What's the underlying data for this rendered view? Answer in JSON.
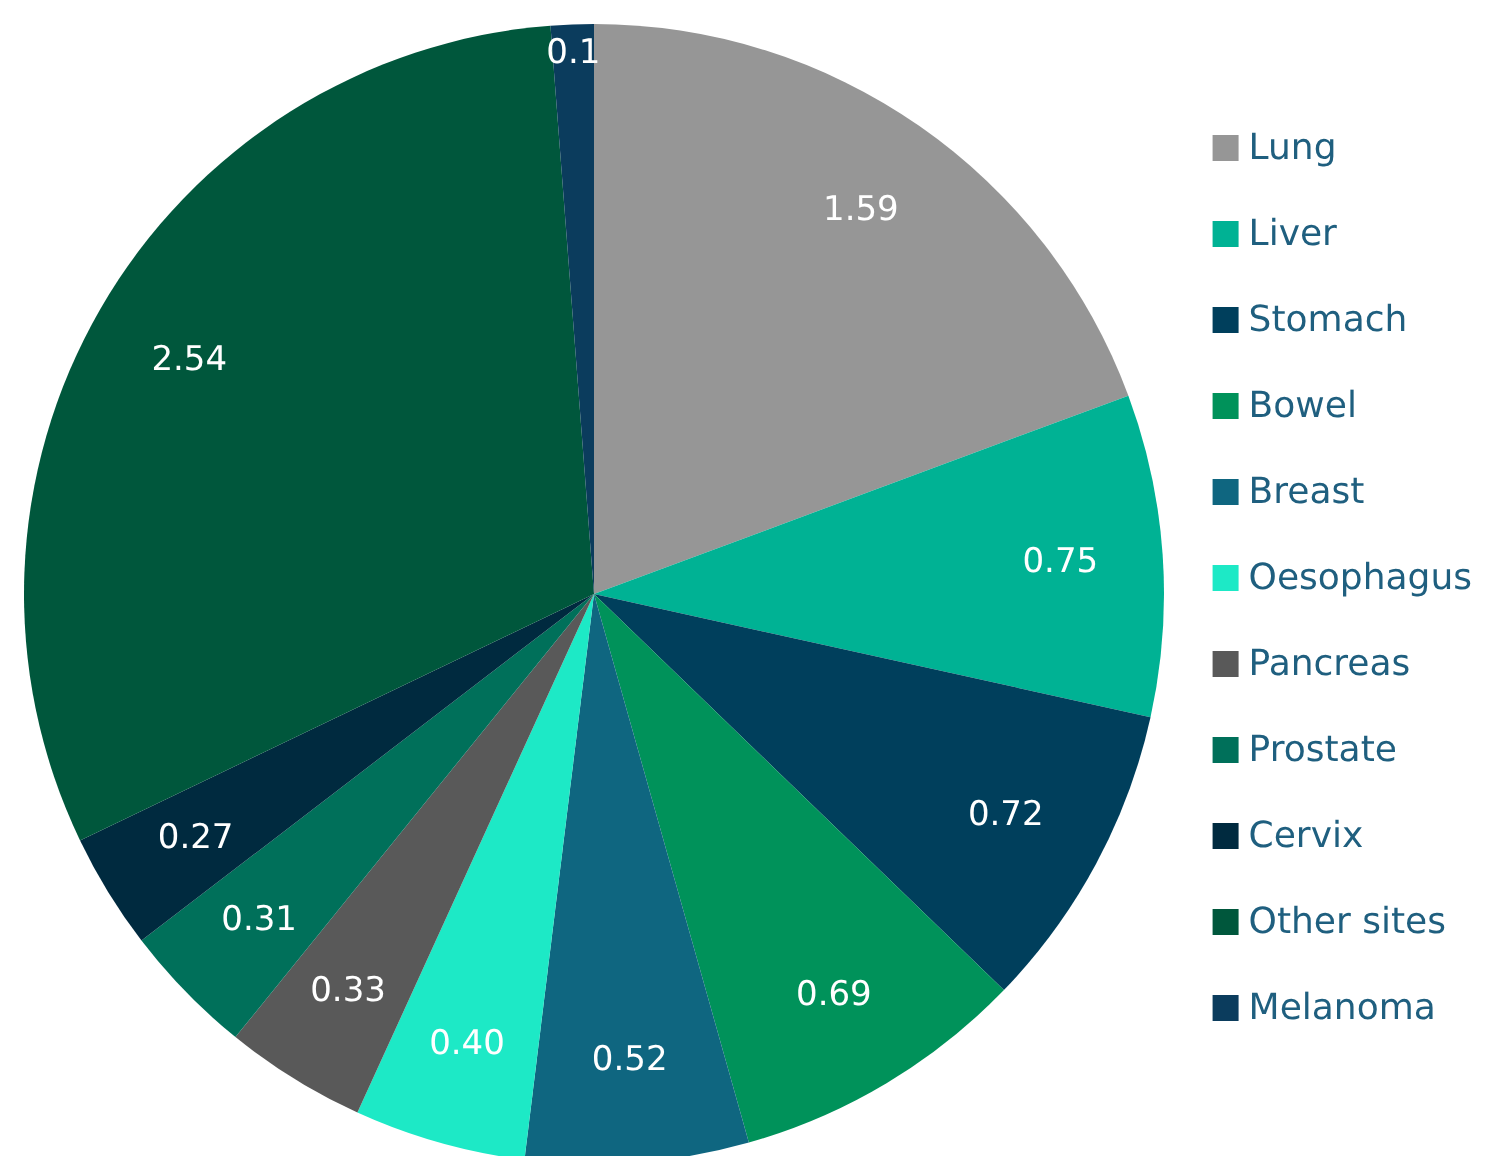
{
  "chart_data": {
    "type": "pie",
    "categories": [
      "Lung",
      "Liver",
      "Stomach",
      "Bowel",
      "Breast",
      "Oesophagus",
      "Pancreas",
      "Prostate",
      "Cervix",
      "Other sites",
      "Melanoma"
    ],
    "values": [
      1.59,
      0.75,
      0.72,
      0.69,
      0.52,
      0.4,
      0.33,
      0.31,
      0.27,
      2.54,
      0.1
    ],
    "value_labels": [
      "1.59",
      "0.75",
      "0.72",
      "0.69",
      "0.52",
      "0.40",
      "0.33",
      "0.31",
      "0.27",
      "2.54",
      "0.1"
    ],
    "colors": [
      "#969696",
      "#00b294",
      "#003f5c",
      "#00925a",
      "#0f6680",
      "#1de9c6",
      "#595959",
      "#00705a",
      "#002a3f",
      "#00573c",
      "#0b3c5d"
    ],
    "legend": "right"
  }
}
